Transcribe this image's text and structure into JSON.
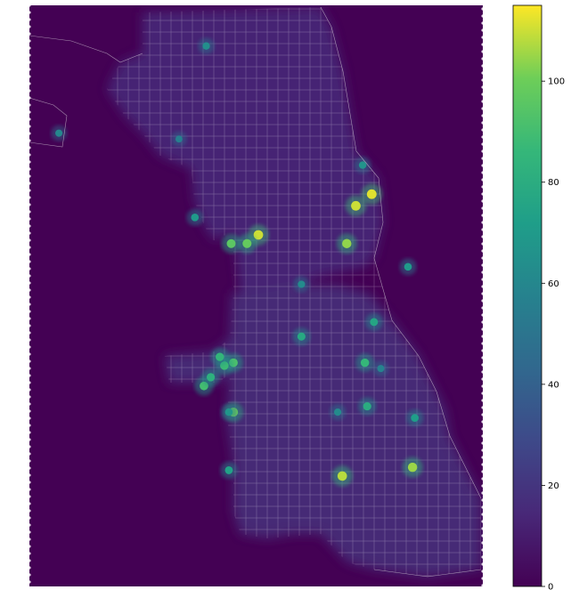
{
  "chart_data": {
    "type": "heatmap",
    "title": "",
    "xlabel": "",
    "ylabel": "",
    "colormap": "viridis",
    "colorbar": {
      "min": 0,
      "max": 115,
      "ticks": [
        0,
        20,
        40,
        60,
        80,
        100
      ],
      "tick_labels": [
        "0",
        "20",
        "40",
        "60",
        "80",
        "100"
      ]
    },
    "background_value": 0,
    "region_outline_color": "#e8e8e8",
    "hotspots": [
      {
        "x": 0.755,
        "y": 0.675,
        "value": 112
      },
      {
        "x": 0.72,
        "y": 0.655,
        "value": 110
      },
      {
        "x": 0.505,
        "y": 0.605,
        "value": 110
      },
      {
        "x": 0.7,
        "y": 0.59,
        "value": 104
      },
      {
        "x": 0.45,
        "y": 0.3,
        "value": 100
      },
      {
        "x": 0.48,
        "y": 0.59,
        "value": 98
      },
      {
        "x": 0.445,
        "y": 0.59,
        "value": 96
      },
      {
        "x": 0.845,
        "y": 0.205,
        "value": 105
      },
      {
        "x": 0.69,
        "y": 0.19,
        "value": 108
      },
      {
        "x": 0.385,
        "y": 0.345,
        "value": 90
      },
      {
        "x": 0.45,
        "y": 0.385,
        "value": 92
      },
      {
        "x": 0.43,
        "y": 0.38,
        "value": 88
      },
      {
        "x": 0.74,
        "y": 0.385,
        "value": 86
      },
      {
        "x": 0.42,
        "y": 0.395,
        "value": 85
      },
      {
        "x": 0.4,
        "y": 0.36,
        "value": 82
      },
      {
        "x": 0.6,
        "y": 0.43,
        "value": 78
      },
      {
        "x": 0.745,
        "y": 0.31,
        "value": 80
      },
      {
        "x": 0.76,
        "y": 0.455,
        "value": 76
      },
      {
        "x": 0.44,
        "y": 0.2,
        "value": 74
      },
      {
        "x": 0.365,
        "y": 0.635,
        "value": 70
      },
      {
        "x": 0.85,
        "y": 0.29,
        "value": 72
      },
      {
        "x": 0.835,
        "y": 0.55,
        "value": 70
      },
      {
        "x": 0.44,
        "y": 0.3,
        "value": 68
      },
      {
        "x": 0.735,
        "y": 0.725,
        "value": 66
      },
      {
        "x": 0.065,
        "y": 0.78,
        "value": 60
      },
      {
        "x": 0.39,
        "y": 0.93,
        "value": 64
      },
      {
        "x": 0.6,
        "y": 0.52,
        "value": 62
      },
      {
        "x": 0.68,
        "y": 0.3,
        "value": 62
      },
      {
        "x": 0.775,
        "y": 0.375,
        "value": 58
      },
      {
        "x": 0.33,
        "y": 0.77,
        "value": 56
      }
    ]
  }
}
